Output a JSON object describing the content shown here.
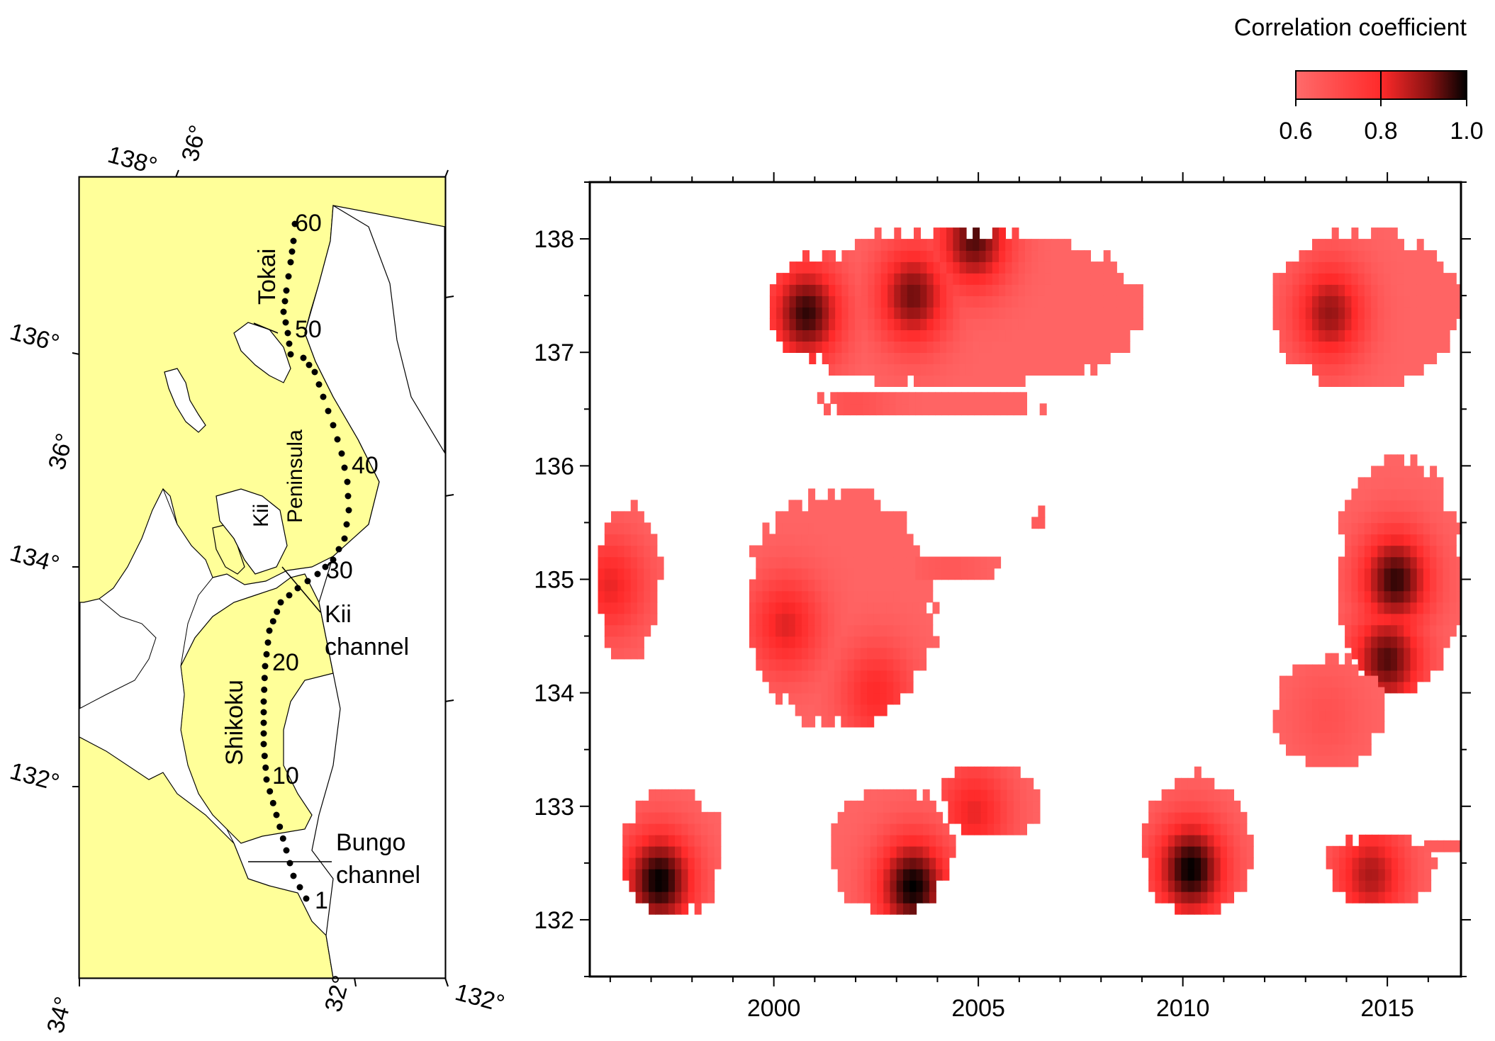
{
  "colorbar": {
    "title": "Correlation coefficient",
    "ticks": [
      "0.6",
      "0.8",
      "1.0"
    ],
    "range": [
      0.6,
      1.0
    ],
    "colors": [
      "#ff6b6b",
      "#ff2a2a",
      "#7a1010",
      "#000000"
    ]
  },
  "map": {
    "land_color": "#ffff99",
    "lon_labels": [
      "138°",
      "34°",
      "132°"
    ],
    "lat_labels": [
      "36°",
      "136°",
      "36°",
      "134°",
      "132°",
      "32°"
    ],
    "point_labels": [
      "60",
      "50",
      "40",
      "30",
      "20",
      "10",
      "1"
    ],
    "region_labels": {
      "tokai": "Tokai",
      "kii": "Kii",
      "peninsula": "Peninsula",
      "shikoku": "Shikoku",
      "kii_channel_1": "Kii",
      "kii_channel_2": "channel",
      "bungo_1": "Bungo",
      "bungo_2": "channel"
    }
  },
  "chart_data": {
    "type": "heatmap",
    "title": "",
    "xlabel": "",
    "ylabel": "",
    "xlim": [
      1995.5,
      2016.8
    ],
    "ylim": [
      131.5,
      138.5
    ],
    "xticks": [
      2000,
      2005,
      2010,
      2015
    ],
    "yticks": [
      132,
      133,
      134,
      135,
      136,
      137,
      138
    ],
    "value_range": [
      0.6,
      1.0
    ],
    "regions": [
      {
        "x": [
          1999.9,
          2009.0
        ],
        "y": [
          136.7,
          138.05
        ],
        "peaks": [
          {
            "x": 2000.8,
            "y": 137.35,
            "v": 0.97
          },
          {
            "x": 2003.4,
            "y": 137.5,
            "v": 0.93
          },
          {
            "x": 2004.9,
            "y": 138.0,
            "v": 0.95
          }
        ]
      },
      {
        "x": [
          2000.9,
          2006.7
        ],
        "y": [
          136.45,
          136.65
        ],
        "peaks": [
          {
            "x": 2002.0,
            "y": 136.55,
            "v": 0.68
          }
        ]
      },
      {
        "x": [
          2012.2,
          2016.8
        ],
        "y": [
          136.7,
          138.05
        ],
        "peaks": [
          {
            "x": 2013.6,
            "y": 137.35,
            "v": 0.9
          }
        ]
      },
      {
        "x": [
          1995.7,
          1997.2
        ],
        "y": [
          134.3,
          135.65
        ],
        "peaks": [
          {
            "x": 1996.0,
            "y": 134.95,
            "v": 0.82
          }
        ]
      },
      {
        "x": [
          1999.4,
          2003.9
        ],
        "y": [
          133.7,
          135.75
        ],
        "peaks": [
          {
            "x": 2000.3,
            "y": 134.6,
            "v": 0.83
          },
          {
            "x": 2002.5,
            "y": 134.0,
            "v": 0.8
          }
        ]
      },
      {
        "x": [
          2003.3,
          2005.5
        ],
        "y": [
          135.0,
          135.2
        ],
        "peaks": [
          {
            "x": 2004.3,
            "y": 135.1,
            "v": 0.66
          }
        ]
      },
      {
        "x": [
          2006.3,
          2006.7
        ],
        "y": [
          135.45,
          135.6
        ],
        "peaks": [
          {
            "x": 2006.5,
            "y": 135.52,
            "v": 0.65
          }
        ]
      },
      {
        "x": [
          2013.8,
          2016.8
        ],
        "y": [
          134.0,
          136.05
        ],
        "peaks": [
          {
            "x": 2015.2,
            "y": 135.0,
            "v": 0.97
          },
          {
            "x": 2015.0,
            "y": 134.3,
            "v": 0.95
          }
        ]
      },
      {
        "x": [
          2012.2,
          2014.9
        ],
        "y": [
          133.35,
          134.3
        ],
        "peaks": [
          {
            "x": 2013.5,
            "y": 133.8,
            "v": 0.68
          }
        ]
      },
      {
        "x": [
          1996.3,
          1998.7
        ],
        "y": [
          132.05,
          133.15
        ],
        "peaks": [
          {
            "x": 1997.2,
            "y": 132.35,
            "v": 1.0
          }
        ]
      },
      {
        "x": [
          2001.4,
          2004.3
        ],
        "y": [
          132.05,
          133.15
        ],
        "peaks": [
          {
            "x": 2003.4,
            "y": 132.3,
            "v": 1.0
          }
        ]
      },
      {
        "x": [
          2004.1,
          2006.5
        ],
        "y": [
          132.75,
          133.35
        ],
        "peaks": [
          {
            "x": 2004.9,
            "y": 132.95,
            "v": 0.82
          }
        ]
      },
      {
        "x": [
          2009.0,
          2011.7
        ],
        "y": [
          132.05,
          133.25
        ],
        "peaks": [
          {
            "x": 2010.2,
            "y": 132.45,
            "v": 1.0
          }
        ]
      },
      {
        "x": [
          2013.5,
          2016.1
        ],
        "y": [
          132.15,
          132.75
        ],
        "peaks": [
          {
            "x": 2014.6,
            "y": 132.4,
            "v": 0.88
          }
        ]
      },
      {
        "x": [
          2015.9,
          2016.8
        ],
        "y": [
          132.6,
          132.75
        ],
        "peaks": [
          {
            "x": 2016.3,
            "y": 132.7,
            "v": 0.65
          }
        ]
      }
    ]
  }
}
